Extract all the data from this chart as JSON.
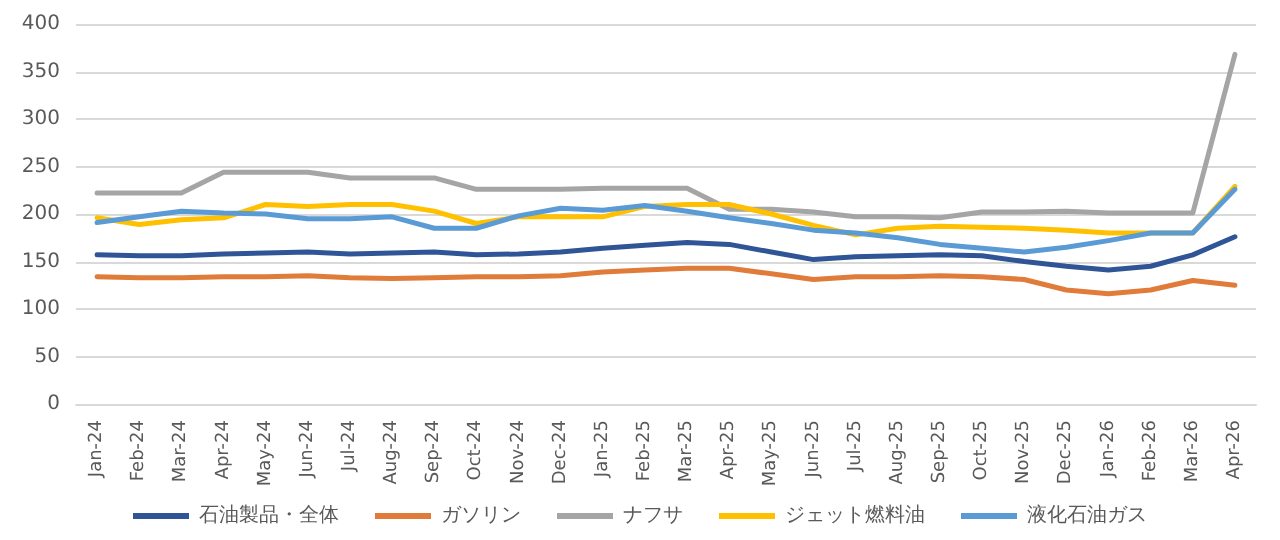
{
  "chart_data": {
    "type": "line",
    "categories": [
      "Jan-24",
      "Feb-24",
      "Mar-24",
      "Apr-24",
      "May-24",
      "Jun-24",
      "Jul-24",
      "Aug-24",
      "Sep-24",
      "Oct-24",
      "Nov-24",
      "Dec-24",
      "Jan-25",
      "Feb-25",
      "Mar-25",
      "Apr-25",
      "May-25",
      "Jun-25",
      "Jul-25",
      "Aug-25",
      "Sep-25",
      "Oct-25",
      "Nov-25",
      "Dec-25",
      "Jan-26",
      "Feb-26",
      "Mar-26",
      "Apr-26"
    ],
    "series": [
      {
        "name": "石油製品・全体",
        "color": "#2f5597",
        "values": [
          157,
          156,
          156,
          158,
          159,
          160,
          158,
          159,
          160,
          157,
          158,
          160,
          164,
          167,
          170,
          168,
          160,
          152,
          155,
          156,
          157,
          156,
          150,
          145,
          141,
          145,
          157,
          176
        ]
      },
      {
        "name": "ガソリン",
        "color": "#e07b39",
        "values": [
          134,
          133,
          133,
          134,
          134,
          135,
          133,
          132,
          133,
          134,
          134,
          135,
          139,
          141,
          143,
          143,
          137,
          131,
          134,
          134,
          135,
          134,
          131,
          120,
          116,
          120,
          130,
          125
        ]
      },
      {
        "name": "ナフサ",
        "color": "#a5a5a5",
        "values": [
          222,
          222,
          222,
          244,
          244,
          244,
          238,
          238,
          238,
          226,
          226,
          226,
          227,
          227,
          227,
          205,
          205,
          202,
          197,
          197,
          196,
          202,
          202,
          203,
          201,
          201,
          201,
          368
        ]
      },
      {
        "name": "ジェット燃料油",
        "color": "#ffc000",
        "values": [
          196,
          189,
          194,
          196,
          210,
          208,
          210,
          210,
          203,
          190,
          197,
          197,
          197,
          208,
          210,
          210,
          200,
          188,
          178,
          185,
          187,
          186,
          185,
          183,
          180,
          180,
          180,
          229
        ]
      },
      {
        "name": "液化石油ガス",
        "color": "#5b9bd5",
        "values": [
          191,
          197,
          203,
          201,
          200,
          195,
          195,
          197,
          185,
          185,
          198,
          206,
          204,
          209,
          203,
          196,
          190,
          183,
          180,
          175,
          168,
          164,
          160,
          165,
          172,
          180,
          180,
          226
        ]
      }
    ],
    "ylim": [
      0,
      400
    ],
    "yticks": [
      0,
      50,
      100,
      150,
      200,
      250,
      300,
      350,
      400
    ],
    "grid": "y",
    "legend": "bottom",
    "marker": "none",
    "line_style": "solid"
  }
}
